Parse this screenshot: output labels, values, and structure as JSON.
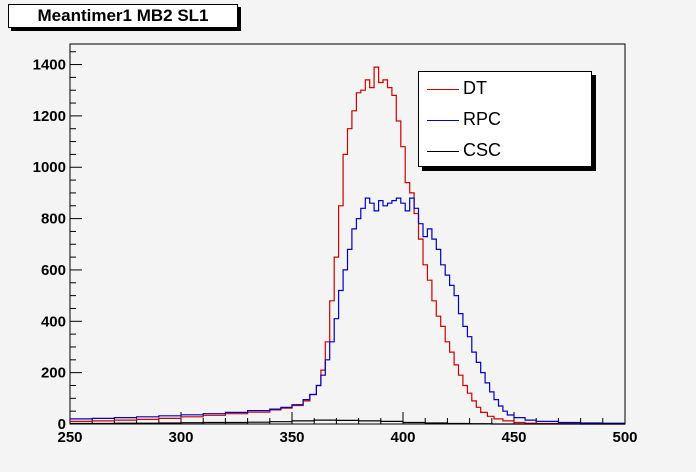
{
  "chart_data": {
    "type": "line",
    "title": "Meantimer1 MB2 SL1",
    "xlabel": "",
    "ylabel": "",
    "xlim": [
      250,
      500
    ],
    "ylim": [
      0,
      1480
    ],
    "x_ticks": [
      250,
      300,
      350,
      400,
      450,
      500
    ],
    "y_ticks": [
      0,
      200,
      400,
      600,
      800,
      1000,
      1200,
      1400
    ],
    "legend_position": "top-right",
    "grid": false,
    "series": [
      {
        "name": "DT",
        "color": "#cc0000",
        "x": [
          250,
          260,
          270,
          280,
          290,
          300,
          310,
          320,
          330,
          340,
          345,
          350,
          355,
          358,
          361,
          363,
          365,
          367,
          369,
          371,
          373,
          375,
          377,
          379,
          381,
          383,
          385,
          387,
          389,
          391,
          393,
          395,
          397,
          399,
          401,
          403,
          405,
          407,
          409,
          411,
          413,
          415,
          417,
          419,
          421,
          423,
          425,
          427,
          429,
          431,
          433,
          435,
          438,
          441,
          445,
          450,
          455,
          460,
          470,
          480,
          490,
          500
        ],
        "values": [
          10,
          12,
          15,
          18,
          22,
          28,
          34,
          40,
          46,
          55,
          62,
          72,
          90,
          115,
          150,
          210,
          320,
          480,
          650,
          850,
          1050,
          1150,
          1220,
          1290,
          1300,
          1340,
          1310,
          1390,
          1330,
          1340,
          1310,
          1280,
          1180,
          1080,
          940,
          900,
          820,
          720,
          620,
          560,
          480,
          420,
          380,
          320,
          280,
          230,
          190,
          150,
          120,
          90,
          65,
          45,
          30,
          20,
          12,
          6,
          3,
          2,
          1,
          0,
          0,
          0
        ]
      },
      {
        "name": "RPC",
        "color": "#0000bb",
        "x": [
          250,
          260,
          270,
          280,
          290,
          300,
          310,
          320,
          330,
          340,
          345,
          350,
          355,
          358,
          361,
          363,
          365,
          367,
          369,
          371,
          373,
          375,
          377,
          379,
          381,
          383,
          385,
          387,
          389,
          391,
          393,
          395,
          397,
          399,
          401,
          403,
          405,
          407,
          409,
          411,
          413,
          415,
          417,
          419,
          421,
          423,
          425,
          427,
          429,
          431,
          433,
          435,
          437,
          439,
          441,
          443,
          445,
          447,
          450,
          455,
          460,
          470,
          480,
          490,
          500
        ],
        "values": [
          20,
          22,
          25,
          28,
          32,
          36,
          40,
          45,
          52,
          58,
          65,
          75,
          95,
          115,
          150,
          190,
          250,
          320,
          410,
          520,
          600,
          680,
          760,
          800,
          840,
          880,
          860,
          830,
          870,
          850,
          860,
          870,
          880,
          860,
          830,
          880,
          840,
          780,
          730,
          760,
          720,
          680,
          620,
          580,
          540,
          500,
          430,
          380,
          340,
          280,
          240,
          200,
          160,
          125,
          95,
          70,
          50,
          35,
          25,
          15,
          10,
          6,
          4,
          3,
          2
        ]
      },
      {
        "name": "CSC",
        "color": "#000000",
        "x": [
          250,
          260,
          270,
          280,
          290,
          300,
          310,
          320,
          330,
          340,
          350,
          360,
          370,
          380,
          390,
          400,
          410,
          420,
          430,
          440,
          450,
          460,
          470,
          480,
          490,
          500
        ],
        "values": [
          2,
          2,
          3,
          3,
          4,
          5,
          6,
          6,
          7,
          9,
          12,
          15,
          14,
          12,
          10,
          6,
          4,
          2,
          1,
          0,
          0,
          0,
          0,
          0,
          0,
          0
        ]
      }
    ]
  }
}
